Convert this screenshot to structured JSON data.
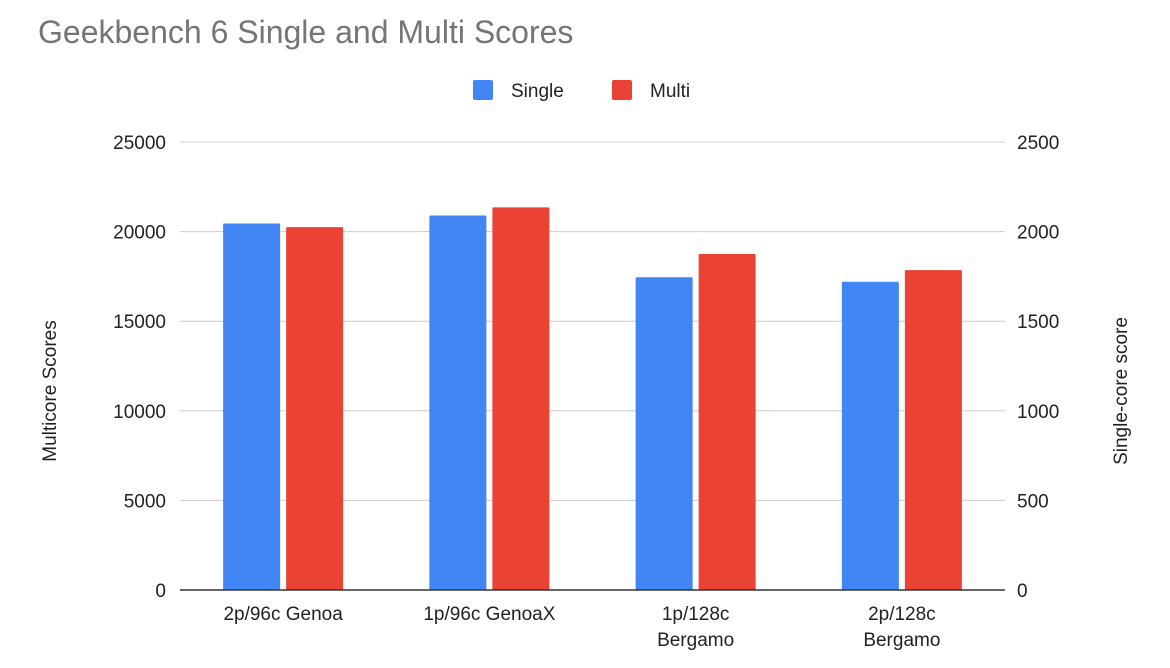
{
  "chart_data": {
    "type": "bar",
    "title": "Geekbench 6 Single and Multi Scores",
    "categories": [
      [
        "2p/96c Genoa"
      ],
      [
        "1p/96c GenoaX"
      ],
      [
        "1p/128c",
        "Bergamo"
      ],
      [
        "2p/128c",
        "Bergamo"
      ]
    ],
    "series": [
      {
        "name": "Single",
        "axis": "right",
        "color": "#4285f4",
        "values": [
          2045,
          2090,
          1745,
          1720
        ]
      },
      {
        "name": "Multi",
        "axis": "left",
        "color": "#ea4335",
        "values": [
          20250,
          21350,
          18750,
          17850
        ]
      }
    ],
    "left_axis": {
      "label": "Multicore Scores",
      "range": [
        0,
        25000
      ],
      "ticks": [
        "0",
        "5000",
        "10000",
        "15000",
        "20000",
        "25000"
      ]
    },
    "right_axis": {
      "label": "Single-core score",
      "range": [
        0,
        2500
      ],
      "ticks": [
        "0",
        "500",
        "1000",
        "1500",
        "2000",
        "2500"
      ]
    },
    "grid": true,
    "legend": "top-center",
    "colors": {
      "title": "#757575",
      "text": "#222222",
      "grid": "#cccccc",
      "baseline": "#333333"
    }
  }
}
